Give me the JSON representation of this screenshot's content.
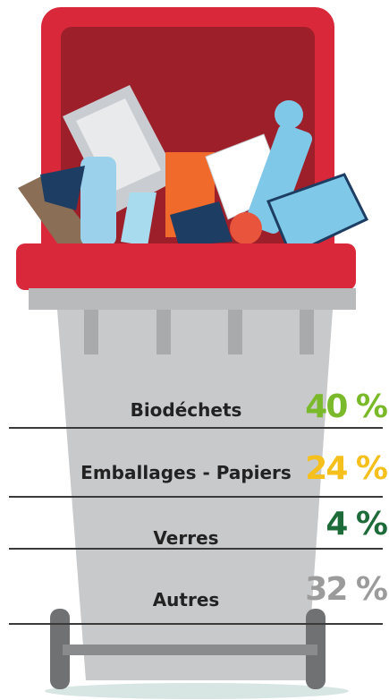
{
  "items": [
    {
      "label": "Biodéchets",
      "percent": "40 %",
      "color": "#7ab929"
    },
    {
      "label": "Emballages - Papiers",
      "percent": "24 %",
      "color": "#f5c01c"
    },
    {
      "label": "Verres",
      "percent": "4 %",
      "color": "#1e6b3a"
    },
    {
      "label": "Autres",
      "percent": "32 %",
      "color": "#9b9b9b"
    }
  ]
}
